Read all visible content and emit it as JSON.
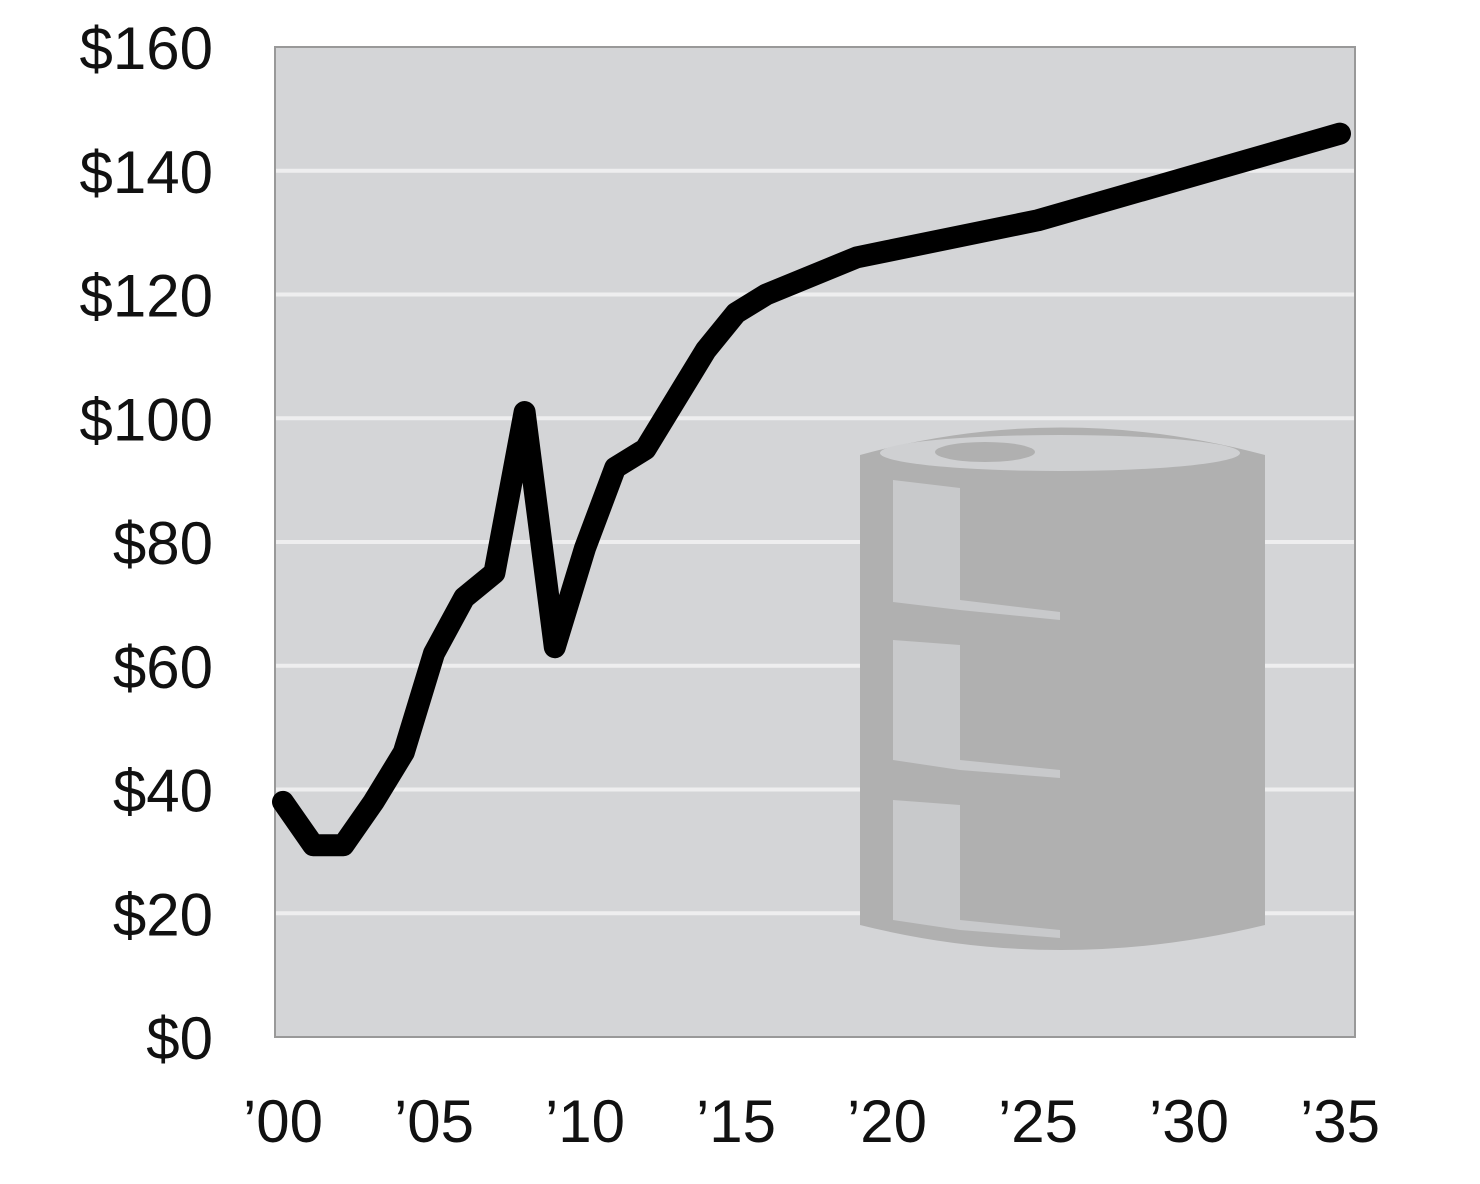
{
  "chart_data": {
    "type": "line",
    "title": "",
    "xlabel": "",
    "ylabel": "",
    "x": [
      2000,
      2001,
      2002,
      2003,
      2004,
      2005,
      2006,
      2007,
      2008,
      2009,
      2010,
      2011,
      2012,
      2013,
      2014,
      2015,
      2016,
      2017,
      2018,
      2019,
      2020,
      2025,
      2030,
      2035
    ],
    "series": [
      {
        "values": [
          38,
          31,
          31,
          38,
          46,
          62,
          71,
          75,
          101,
          63,
          79,
          92,
          95,
          103,
          111,
          117,
          120,
          122,
          124,
          126,
          127,
          132,
          139,
          146
        ],
        "color": "#000000"
      }
    ],
    "xlim": [
      2000,
      2035
    ],
    "ylim": [
      0,
      160
    ],
    "yticks": [
      0,
      20,
      40,
      60,
      80,
      100,
      120,
      140,
      160
    ],
    "ytick_labels": [
      "$0",
      "$20",
      "$40",
      "$60",
      "$80",
      "$100",
      "$120",
      "$140",
      "$160"
    ],
    "xticks": [
      2000,
      2005,
      2010,
      2015,
      2020,
      2025,
      2030,
      2035
    ],
    "xtick_labels": [
      "’00",
      "’05",
      "’10",
      "’15",
      "’20",
      "’25",
      "’30",
      "’35"
    ],
    "grid": true,
    "plot_background": "#d4d5d7",
    "gridline_color": "#eeeeef",
    "background_icon": "oil-barrel-icon",
    "icon_color": "#b0b0b0"
  }
}
